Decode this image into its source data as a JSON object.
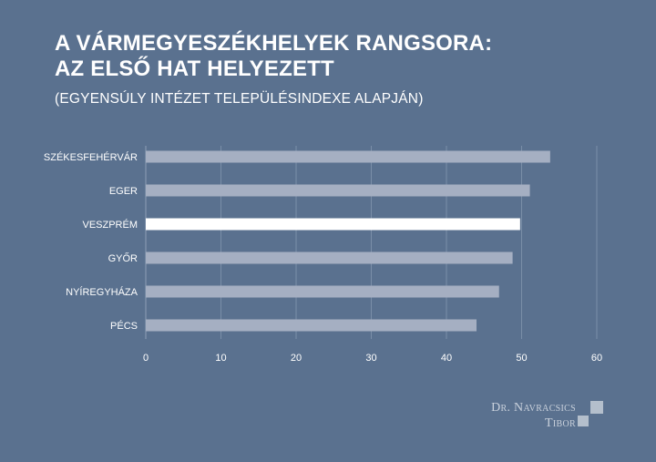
{
  "title": {
    "line1": "A VÁRMEGYESZÉKHELYEK RANGSORA:",
    "line2": "AZ ELSŐ HAT HELYEZETT"
  },
  "subtitle": "(EGYENSÚLY INTÉZET TELEPÜLÉSINDEXE ALAPJÁN)",
  "logo": {
    "line1": "Dr. Navracsics",
    "line2": "Tibor"
  },
  "colors": {
    "background": "#5a718f",
    "bar": "#a5afc2",
    "highlight_bar": "#ffffff",
    "text": "#ffffff"
  },
  "chart_data": {
    "type": "bar",
    "orientation": "horizontal",
    "categories": [
      "SZÉKESFEHÉRVÁR",
      "EGER",
      "VESZPRÉM",
      "GYŐR",
      "NYÍREGYHÁZA",
      "PÉCS"
    ],
    "values": [
      53.8,
      51.1,
      49.8,
      48.8,
      47.0,
      44.0
    ],
    "highlight": "VESZPRÉM",
    "xlim": [
      0,
      60
    ],
    "xticks": [
      0,
      10,
      20,
      30,
      40,
      50,
      60
    ],
    "grid": true,
    "legend": "none"
  }
}
